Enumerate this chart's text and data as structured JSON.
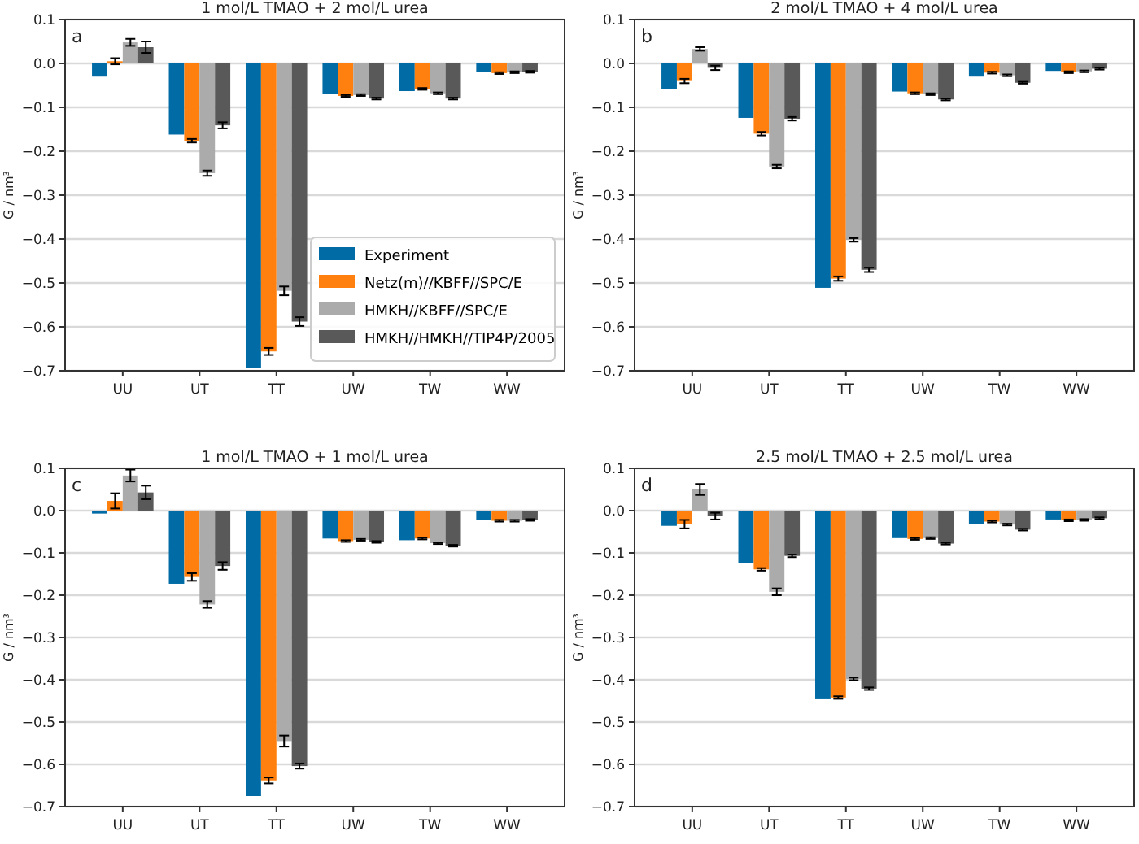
{
  "chart_data": [
    {
      "type": "bar",
      "title": "1 mol/L TMAO + 2 mol/L urea",
      "ylabel": "G / nm³",
      "annotations": [
        "a"
      ],
      "categories": [
        "UU",
        "UT",
        "TT",
        "UW",
        "TW",
        "WW"
      ],
      "ylim": [
        -0.7,
        0.1
      ],
      "yticks": [
        {
          "value": -0.7,
          "label": "−0.7"
        },
        {
          "value": -0.6,
          "label": "−0.6"
        },
        {
          "value": -0.5,
          "label": "−0.5"
        },
        {
          "value": -0.4,
          "label": "−0.4"
        },
        {
          "value": -0.3,
          "label": "−0.3"
        },
        {
          "value": -0.2,
          "label": "−0.2"
        },
        {
          "value": -0.1,
          "label": "−0.1"
        },
        {
          "value": 0,
          "label": "0.0"
        },
        {
          "value": 0.1,
          "label": "0.1"
        }
      ],
      "grid": "y",
      "legend": "bottom right",
      "series": [
        {
          "name": "Experiment",
          "color": "#006ba4",
          "values": [
            -0.03,
            -0.162,
            -0.693,
            -0.069,
            -0.063,
            -0.02
          ]
        },
        {
          "name": "Netz(m)//KBFF//SPC/E",
          "color": "#ff800e",
          "values": [
            0.005,
            -0.176,
            -0.656,
            -0.074,
            -0.058,
            -0.022
          ],
          "errors": [
            0.007,
            0.004,
            0.008,
            0.002,
            0.002,
            0.002
          ]
        },
        {
          "name": "HMKH//KBFF//SPC/E",
          "color": "#ababab",
          "values": [
            0.048,
            -0.25,
            -0.518,
            -0.072,
            -0.068,
            -0.02
          ],
          "errors": [
            0.008,
            0.006,
            0.01,
            0.002,
            0.002,
            0.002
          ]
        },
        {
          "name": "HMKH//HMKH//TIP4P/2005",
          "color": "#595959",
          "values": [
            0.037,
            -0.141,
            -0.588,
            -0.08,
            -0.08,
            -0.019
          ],
          "errors": [
            0.013,
            0.007,
            0.01,
            0.002,
            0.002,
            0.002
          ]
        }
      ]
    },
    {
      "type": "bar",
      "title": "2 mol/L TMAO + 4 mol/L urea",
      "ylabel": "G / nm³",
      "annotations": [
        "b"
      ],
      "categories": [
        "UU",
        "UT",
        "TT",
        "UW",
        "TW",
        "WW"
      ],
      "ylim": [
        -0.7,
        0.1
      ],
      "yticks": [
        {
          "value": -0.7,
          "label": "−0.7"
        },
        {
          "value": -0.6,
          "label": "−0.6"
        },
        {
          "value": -0.5,
          "label": "−0.5"
        },
        {
          "value": -0.4,
          "label": "−0.4"
        },
        {
          "value": -0.3,
          "label": "−0.3"
        },
        {
          "value": -0.2,
          "label": "−0.2"
        },
        {
          "value": -0.1,
          "label": "−0.1"
        },
        {
          "value": 0,
          "label": "0.0"
        },
        {
          "value": 0.1,
          "label": "0.1"
        }
      ],
      "grid": "y",
      "series": [
        {
          "color": "#006ba4",
          "values": [
            -0.058,
            -0.124,
            -0.511,
            -0.064,
            -0.03,
            -0.017
          ]
        },
        {
          "color": "#ff800e",
          "values": [
            -0.04,
            -0.16,
            -0.49,
            -0.068,
            -0.021,
            -0.02
          ],
          "errors": [
            0.005,
            0.004,
            0.005,
            0.002,
            0.002,
            0.002
          ]
        },
        {
          "color": "#ababab",
          "values": [
            0.033,
            -0.235,
            -0.402,
            -0.07,
            -0.027,
            -0.018
          ],
          "errors": [
            0.004,
            0.004,
            0.004,
            0.002,
            0.002,
            0.002
          ]
        },
        {
          "color": "#595959",
          "values": [
            -0.01,
            -0.126,
            -0.47,
            -0.082,
            -0.044,
            -0.012
          ],
          "errors": [
            0.005,
            0.004,
            0.005,
            0.002,
            0.002,
            0.002
          ]
        }
      ]
    },
    {
      "type": "bar",
      "title": "1 mol/L TMAO + 1 mol/L urea",
      "ylabel": "G / nm³",
      "annotations": [
        "c"
      ],
      "categories": [
        "UU",
        "UT",
        "TT",
        "UW",
        "TW",
        "WW"
      ],
      "ylim": [
        -0.7,
        0.1
      ],
      "yticks": [
        {
          "value": -0.7,
          "label": "−0.7"
        },
        {
          "value": -0.6,
          "label": "−0.6"
        },
        {
          "value": -0.5,
          "label": "−0.5"
        },
        {
          "value": -0.4,
          "label": "−0.4"
        },
        {
          "value": -0.3,
          "label": "−0.3"
        },
        {
          "value": -0.2,
          "label": "−0.2"
        },
        {
          "value": -0.1,
          "label": "−0.1"
        },
        {
          "value": 0,
          "label": "0.0"
        },
        {
          "value": 0.1,
          "label": "0.1"
        }
      ],
      "grid": "y",
      "series": [
        {
          "color": "#006ba4",
          "values": [
            -0.007,
            -0.173,
            -0.675,
            -0.066,
            -0.07,
            -0.022
          ]
        },
        {
          "color": "#ff800e",
          "values": [
            0.023,
            -0.157,
            -0.638,
            -0.072,
            -0.066,
            -0.024
          ],
          "errors": [
            0.018,
            0.009,
            0.007,
            0.002,
            0.002,
            0.002
          ]
        },
        {
          "color": "#ababab",
          "values": [
            0.083,
            -0.222,
            -0.545,
            -0.069,
            -0.077,
            -0.024
          ],
          "errors": [
            0.014,
            0.008,
            0.013,
            0.002,
            0.002,
            0.002
          ]
        },
        {
          "color": "#595959",
          "values": [
            0.043,
            -0.131,
            -0.604,
            -0.074,
            -0.083,
            -0.022
          ],
          "errors": [
            0.016,
            0.009,
            0.006,
            0.002,
            0.002,
            0.002
          ]
        }
      ]
    },
    {
      "type": "bar",
      "title": "2.5 mol/L TMAO + 2.5 mol/L urea",
      "ylabel": "G / nm³",
      "annotations": [
        "d"
      ],
      "categories": [
        "UU",
        "UT",
        "TT",
        "UW",
        "TW",
        "WW"
      ],
      "ylim": [
        -0.7,
        0.1
      ],
      "yticks": [
        {
          "value": -0.7,
          "label": "−0.7"
        },
        {
          "value": -0.6,
          "label": "−0.6"
        },
        {
          "value": -0.5,
          "label": "−0.5"
        },
        {
          "value": -0.4,
          "label": "−0.4"
        },
        {
          "value": -0.3,
          "label": "−0.3"
        },
        {
          "value": -0.2,
          "label": "−0.2"
        },
        {
          "value": -0.1,
          "label": "−0.1"
        },
        {
          "value": 0,
          "label": "0.0"
        },
        {
          "value": 0.1,
          "label": "0.1"
        }
      ],
      "grid": "y",
      "series": [
        {
          "color": "#006ba4",
          "values": [
            -0.036,
            -0.125,
            -0.446,
            -0.065,
            -0.032,
            -0.021
          ]
        },
        {
          "color": "#ff800e",
          "values": [
            -0.032,
            -0.139,
            -0.442,
            -0.067,
            -0.026,
            -0.023
          ],
          "errors": [
            0.01,
            0.003,
            0.003,
            0.002,
            0.002,
            0.002
          ]
        },
        {
          "color": "#ababab",
          "values": [
            0.05,
            -0.192,
            -0.398,
            -0.065,
            -0.033,
            -0.022
          ],
          "errors": [
            0.013,
            0.008,
            0.003,
            0.002,
            0.002,
            0.002
          ]
        },
        {
          "color": "#595959",
          "values": [
            -0.013,
            -0.107,
            -0.421,
            -0.078,
            -0.045,
            -0.018
          ],
          "errors": [
            0.008,
            0.003,
            0.003,
            0.002,
            0.002,
            0.002
          ]
        }
      ]
    }
  ]
}
